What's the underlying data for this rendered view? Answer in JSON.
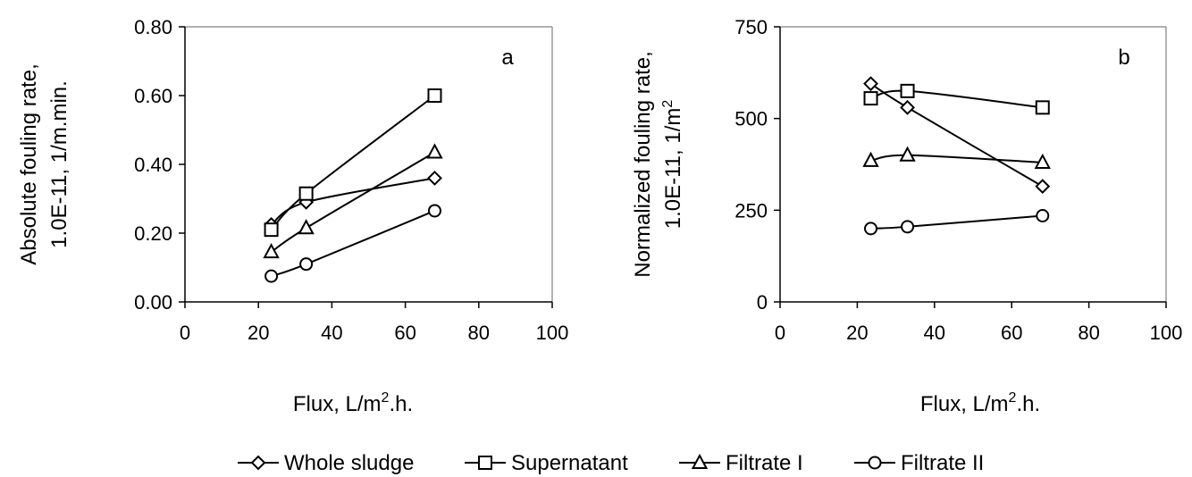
{
  "chart_data": [
    {
      "type": "line",
      "panel_label": "a",
      "ylabel_line1": "Absolute fouling rate,",
      "ylabel_line2": "1.0E-11, 1/m.min.",
      "xlabel_main": "Flux, L/m",
      "xlabel_sup": "2",
      "xlabel_tail": ".h.",
      "xlim": [
        0,
        100
      ],
      "ylim": [
        0,
        0.8
      ],
      "x_ticks": [
        "0",
        "20",
        "40",
        "60",
        "80",
        "100"
      ],
      "y_ticks": [
        "0.00",
        "0.20",
        "0.40",
        "0.60",
        "0.80"
      ],
      "grid": false,
      "x": [
        23.5,
        33,
        68
      ],
      "series": [
        {
          "name": "Whole sludge",
          "marker": "diamond",
          "values": [
            0.225,
            0.29,
            0.36
          ]
        },
        {
          "name": "Supernatant",
          "marker": "square",
          "values": [
            0.21,
            0.315,
            0.6
          ]
        },
        {
          "name": "Filtrate I",
          "marker": "triangle",
          "values": [
            0.145,
            0.215,
            0.435
          ]
        },
        {
          "name": "Filtrate II",
          "marker": "circle",
          "values": [
            0.075,
            0.11,
            0.265
          ]
        }
      ]
    },
    {
      "type": "line",
      "panel_label": "b",
      "ylabel_line1": "Normalized fouling rate,",
      "ylabel_line2": "1.0E-11, 1/m",
      "ylabel_sup": "2",
      "xlabel_main": "Flux, L/m",
      "xlabel_sup": "2",
      "xlabel_tail": ".h.",
      "xlim": [
        0,
        100
      ],
      "ylim": [
        0,
        750
      ],
      "x_ticks": [
        "0",
        "20",
        "40",
        "60",
        "80",
        "100"
      ],
      "y_ticks": [
        "0",
        "250",
        "500",
        "750"
      ],
      "grid": false,
      "x": [
        23.5,
        33,
        68
      ],
      "series": [
        {
          "name": "Whole sludge",
          "marker": "diamond",
          "values": [
            595,
            530,
            315
          ]
        },
        {
          "name": "Supernatant",
          "marker": "square",
          "values": [
            555,
            575,
            530
          ]
        },
        {
          "name": "Filtrate I",
          "marker": "triangle",
          "values": [
            385,
            400,
            380
          ]
        },
        {
          "name": "Filtrate II",
          "marker": "circle",
          "values": [
            200,
            205,
            235
          ]
        }
      ]
    }
  ],
  "legend": {
    "placement": "bottom",
    "items": [
      {
        "label": "Whole sludge",
        "marker": "diamond"
      },
      {
        "label": "Supernatant",
        "marker": "square"
      },
      {
        "label": "Filtrate I",
        "marker": "triangle"
      },
      {
        "label": "Filtrate II",
        "marker": "circle"
      }
    ]
  },
  "colors": {
    "line": "#000000",
    "marker_fill": "#ffffff",
    "background": "#ffffff"
  }
}
